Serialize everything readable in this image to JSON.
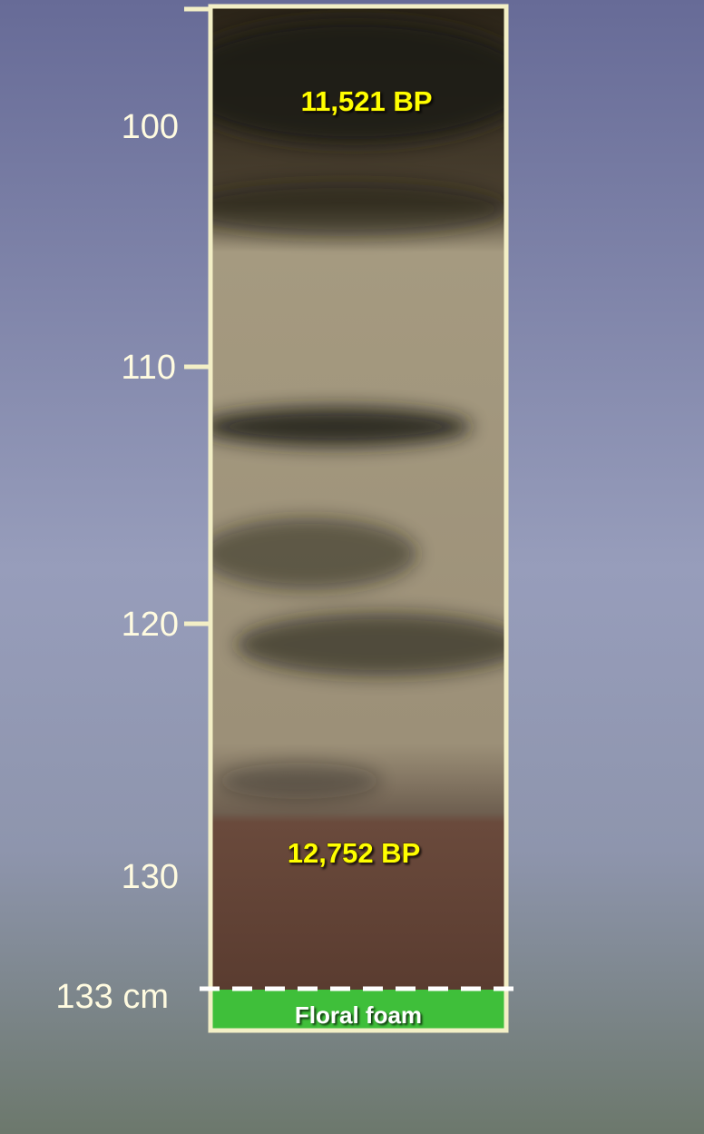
{
  "depth_labels": [
    "100",
    "110",
    "120",
    "130",
    "133 cm"
  ],
  "annotations": {
    "top_age": "11,521 BP",
    "bottom_age": "12,752 BP",
    "base": "Floral foam"
  }
}
